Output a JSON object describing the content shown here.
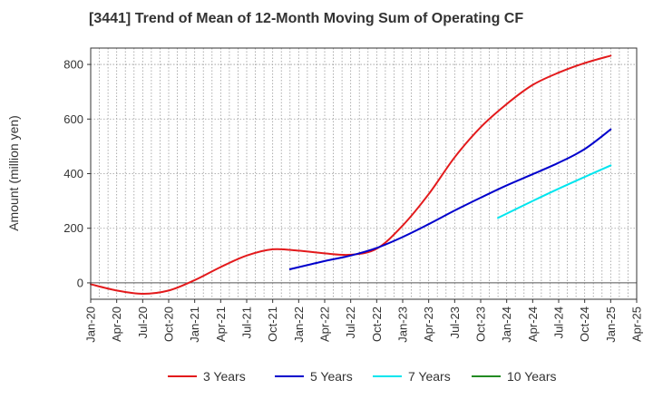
{
  "chart_data": {
    "type": "line",
    "title": "[3441]  Trend of Mean of 12-Month Moving Sum of Operating CF",
    "xlabel": "",
    "ylabel": "Amount (million yen)",
    "ylim": [
      -60,
      860
    ],
    "yticks": [
      0,
      200,
      400,
      600,
      800
    ],
    "x_start": "2020-01",
    "x_end": "2025-04",
    "xtick_labels": [
      "Jan-20",
      "Apr-20",
      "Jul-20",
      "Oct-20",
      "Jan-21",
      "Apr-21",
      "Jul-21",
      "Oct-21",
      "Jan-22",
      "Apr-22",
      "Jul-22",
      "Oct-22",
      "Jan-23",
      "Apr-23",
      "Jul-23",
      "Oct-23",
      "Jan-24",
      "Apr-24",
      "Jul-24",
      "Oct-24",
      "Jan-25",
      "Apr-25"
    ],
    "grid": true,
    "legend_position": "bottom",
    "series": [
      {
        "name": "3 Years",
        "color": "#e31a1c",
        "x": [
          "2020-01",
          "2020-04",
          "2020-07",
          "2020-10",
          "2021-01",
          "2021-04",
          "2021-07",
          "2021-10",
          "2022-01",
          "2022-04",
          "2022-07",
          "2022-10",
          "2023-01",
          "2023-04",
          "2023-07",
          "2023-10",
          "2024-01",
          "2024-04",
          "2024-07",
          "2024-10",
          "2025-01"
        ],
        "values": [
          -5,
          -28,
          -40,
          -28,
          10,
          58,
          100,
          123,
          118,
          108,
          103,
          125,
          210,
          325,
          460,
          570,
          655,
          725,
          770,
          805,
          832
        ]
      },
      {
        "name": "5 Years",
        "color": "#0000cc",
        "x": [
          "2021-12",
          "2022-04",
          "2022-07",
          "2022-10",
          "2023-01",
          "2023-04",
          "2023-07",
          "2023-10",
          "2024-01",
          "2024-04",
          "2024-07",
          "2024-10",
          "2025-01"
        ],
        "values": [
          50,
          80,
          100,
          128,
          168,
          215,
          265,
          312,
          357,
          398,
          440,
          490,
          562
        ]
      },
      {
        "name": "7 Years",
        "color": "#00e5ee",
        "x": [
          "2023-12",
          "2024-04",
          "2024-07",
          "2024-10",
          "2025-01"
        ],
        "values": [
          238,
          300,
          345,
          388,
          430
        ]
      },
      {
        "name": "10 Years",
        "color": "#228b22",
        "x": [],
        "values": []
      }
    ]
  }
}
